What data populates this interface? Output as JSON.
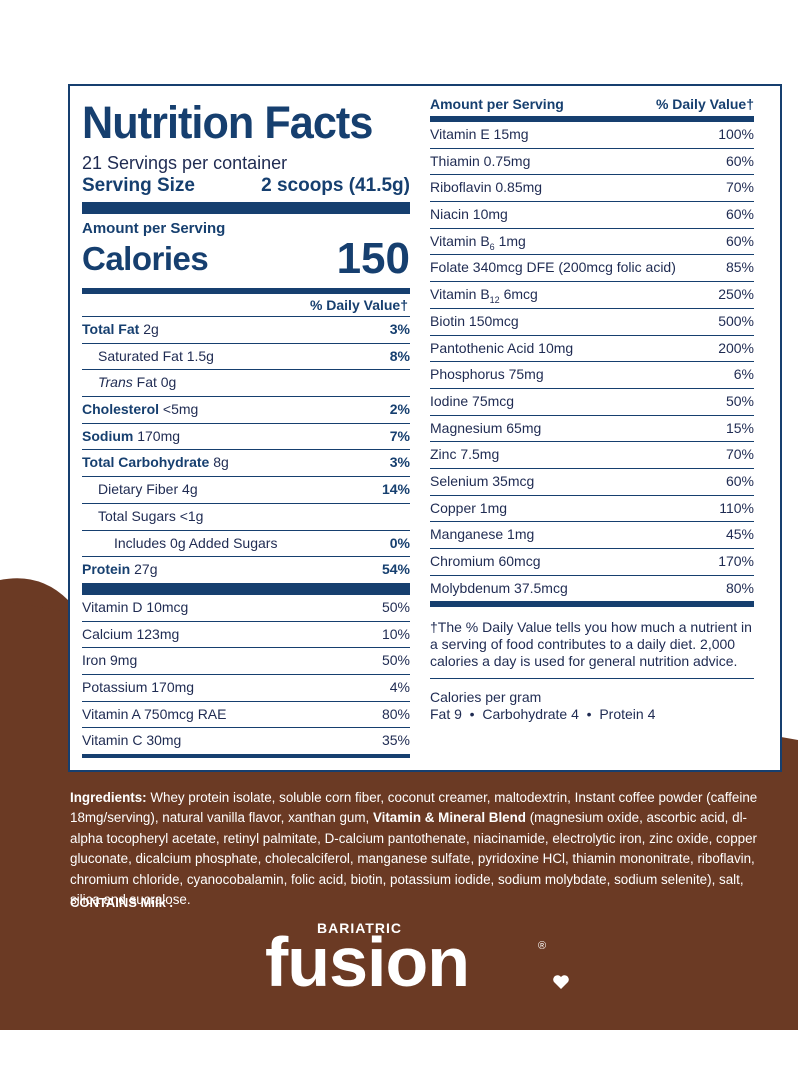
{
  "colors": {
    "navy": "#163f6f",
    "brown": "#6b3a24",
    "text": "#1f2b52",
    "white": "#ffffff"
  },
  "label": {
    "title": "Nutrition Facts",
    "servings": "21 Servings per container",
    "serving_size_label": "Serving Size",
    "serving_size_value": "2 scoops (41.5g)",
    "amount_per_serving": "Amount per Serving",
    "calories_label": "Calories",
    "calories_value": "150",
    "dv_header": "% Daily Value†",
    "nutrients": [
      {
        "name": "Total Fat",
        "amount": "2g",
        "dv": "3%"
      },
      {
        "name": "Saturated Fat",
        "amount": "1.5g",
        "dv": "8%"
      },
      {
        "name_italic": "Trans",
        "name": "Fat",
        "amount": "0g",
        "dv": ""
      },
      {
        "name": "Cholesterol",
        "amount": "<5mg",
        "dv": "2%"
      },
      {
        "name": "Sodium",
        "amount": "170mg",
        "dv": "7%"
      },
      {
        "name": "Total Carbohydrate",
        "amount": "8g",
        "dv": "3%"
      },
      {
        "name": "Dietary Fiber",
        "amount": "4g",
        "dv": "14%"
      },
      {
        "name": "Total Sugars",
        "amount": "<1g",
        "dv": ""
      },
      {
        "name": "Includes 0g Added Sugars",
        "amount": "",
        "dv": "0%"
      },
      {
        "name": "Protein",
        "amount": "27g",
        "dv": "54%"
      }
    ],
    "vitamins_left": [
      {
        "name": "Vitamin D 10mcg",
        "dv": "50%"
      },
      {
        "name": "Calcium 123mg",
        "dv": "10%"
      },
      {
        "name": "Iron 9mg",
        "dv": "50%"
      },
      {
        "name": "Potassium 170mg",
        "dv": "4%"
      },
      {
        "name": "Vitamin A 750mcg RAE",
        "dv": "80%"
      },
      {
        "name": "Vitamin C 30mg",
        "dv": "35%"
      }
    ],
    "right_header_left": "Amount per Serving",
    "right_header_right": "% Daily Value†",
    "vitamins_right": [
      {
        "name": "Vitamin E 15mg",
        "dv": "100%"
      },
      {
        "name": "Thiamin 0.75mg",
        "dv": "60%"
      },
      {
        "name": "Riboflavin 0.85mg",
        "dv": "70%"
      },
      {
        "name": "Niacin 10mg",
        "dv": "60%"
      },
      {
        "name": "Vitamin B",
        "sub": "6",
        "rest": " 1mg",
        "dv": "60%"
      },
      {
        "name": "Folate 340mcg DFE (200mcg folic acid)",
        "dv": "85%"
      },
      {
        "name": "Vitamin B",
        "sub": "12",
        "rest": " 6mcg",
        "dv": "250%"
      },
      {
        "name": "Biotin 150mcg",
        "dv": "500%"
      },
      {
        "name": "Pantothenic Acid 10mg",
        "dv": "200%"
      },
      {
        "name": "Phosphorus 75mg",
        "dv": "6%"
      },
      {
        "name": "Iodine 75mcg",
        "dv": "50%"
      },
      {
        "name": "Magnesium 65mg",
        "dv": "15%"
      },
      {
        "name": "Zinc 7.5mg",
        "dv": "70%"
      },
      {
        "name": "Selenium 35mcg",
        "dv": "60%"
      },
      {
        "name": "Copper 1mg",
        "dv": "110%"
      },
      {
        "name": "Manganese 1mg",
        "dv": "45%"
      },
      {
        "name": "Chromium 60mcg",
        "dv": "170%"
      },
      {
        "name": "Molybdenum 37.5mcg",
        "dv": "80%"
      }
    ],
    "footnote": "†The % Daily Value tells you how much a nutrient in a serving of food contributes to a daily diet. 2,000 calories a day is used for general nutrition advice.",
    "calories_per_gram": "Calories per gram",
    "cpg_values": "Fat 9  •  Carbohydrate 4  •  Protein 4"
  },
  "ingredients": {
    "label": "Ingredients:",
    "text_1": " Whey protein isolate, soluble corn fiber, coconut creamer, maltodextrin, Instant coffee powder (caffeine 18mg/serving), natural vanilla flavor, xanthan gum, ",
    "blend_label": "Vitamin & Mineral Blend",
    "text_2": " (magnesium oxide, ascorbic acid, dl-alpha tocopheryl acetate, retinyl palmitate, D-calcium pantothenate, niacinamide, electrolytic iron, zinc oxide, copper gluconate, dicalcium phosphate, cholecalciferol, manganese sulfate, pyridoxine HCl, thiamin mononitrate, riboflavin, chromium chloride, cyanocobalamin, folic acid, biotin, potassium iodide, sodium molybdate, sodium selenite), salt, silica and sucralose.",
    "contains": "CONTAINS Milk ."
  },
  "logo": {
    "small": "BARIATRIC",
    "big": "fusion",
    "reg": "®"
  }
}
